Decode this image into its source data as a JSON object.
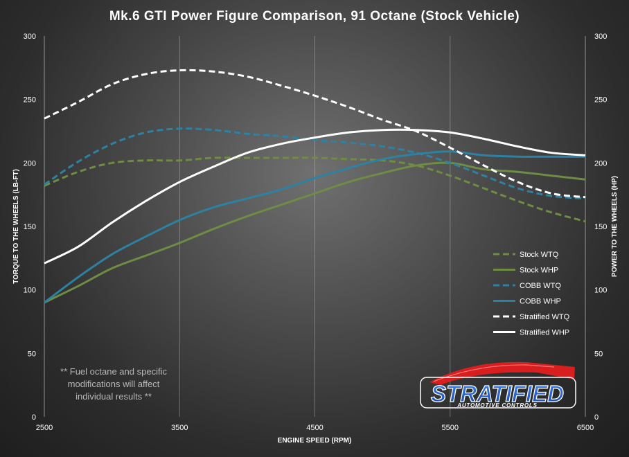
{
  "chart_data": {
    "type": "line",
    "title": "Mk.6 GTI Power Figure Comparison,  91 Octane  (Stock Vehicle)",
    "xlabel": "ENGINE SPEED (RPM)",
    "ylabel_left": "TORQUE TO THE WHEELS (LB-FT)",
    "ylabel_right": "POWER TO THE WHEELS (HP)",
    "xlim": [
      2500,
      6500
    ],
    "ylim": [
      0,
      300
    ],
    "x_ticks": [
      "2500",
      "3500",
      "4500",
      "5500",
      "6500"
    ],
    "y_ticks": [
      "0",
      "50",
      "100",
      "150",
      "200",
      "250",
      "300"
    ],
    "grid": "vertical",
    "legend_position": "right",
    "x": [
      2500,
      2750,
      3000,
      3250,
      3500,
      3750,
      4000,
      4250,
      4500,
      4750,
      5000,
      5250,
      5500,
      5750,
      6000,
      6250,
      6500
    ],
    "series": [
      {
        "name": "Stock WTQ",
        "color": "#6e8c43",
        "style": "dashed",
        "values": [
          182,
          193,
          200,
          202,
          202,
          204,
          204,
          204,
          204,
          203,
          202,
          198,
          190,
          180,
          170,
          161,
          154
        ]
      },
      {
        "name": "Stock WHP",
        "color": "#6e8c43",
        "style": "solid",
        "values": [
          90,
          103,
          117,
          127,
          137,
          148,
          158,
          167,
          176,
          185,
          192,
          198,
          200,
          195,
          193,
          190,
          187
        ]
      },
      {
        "name": "COBB WTQ",
        "color": "#2d82a4",
        "style": "dashed",
        "values": [
          183,
          201,
          215,
          224,
          227,
          226,
          223,
          221,
          218,
          216,
          213,
          208,
          200,
          190,
          180,
          174,
          172
        ]
      },
      {
        "name": "COBB WHP",
        "color": "#2d82a4",
        "style": "solid",
        "values": [
          90,
          110,
          128,
          142,
          155,
          165,
          172,
          179,
          188,
          196,
          203,
          207,
          209,
          206,
          205,
          205,
          205
        ]
      },
      {
        "name": "Stratified WTQ",
        "color": "#ffffff",
        "style": "dashed",
        "values": [
          235,
          248,
          262,
          270,
          273,
          272,
          268,
          261,
          253,
          244,
          234,
          225,
          212,
          198,
          185,
          176,
          173
        ]
      },
      {
        "name": "Stratified WHP",
        "color": "#ffffff",
        "style": "solid",
        "values": [
          121,
          134,
          153,
          170,
          185,
          197,
          208,
          215,
          220,
          224,
          226,
          226,
          224,
          219,
          213,
          208,
          206
        ]
      }
    ]
  },
  "note": {
    "lines": [
      "** Fuel octane and specific",
      "modifications will affect",
      "individual results **"
    ]
  },
  "logo": {
    "wordmark": "STRATIFIED",
    "tagline": "AUTOMOTIVE CONTROLS",
    "colors": {
      "primary": "#1f5fd1",
      "accent": "#d81e1e"
    }
  }
}
